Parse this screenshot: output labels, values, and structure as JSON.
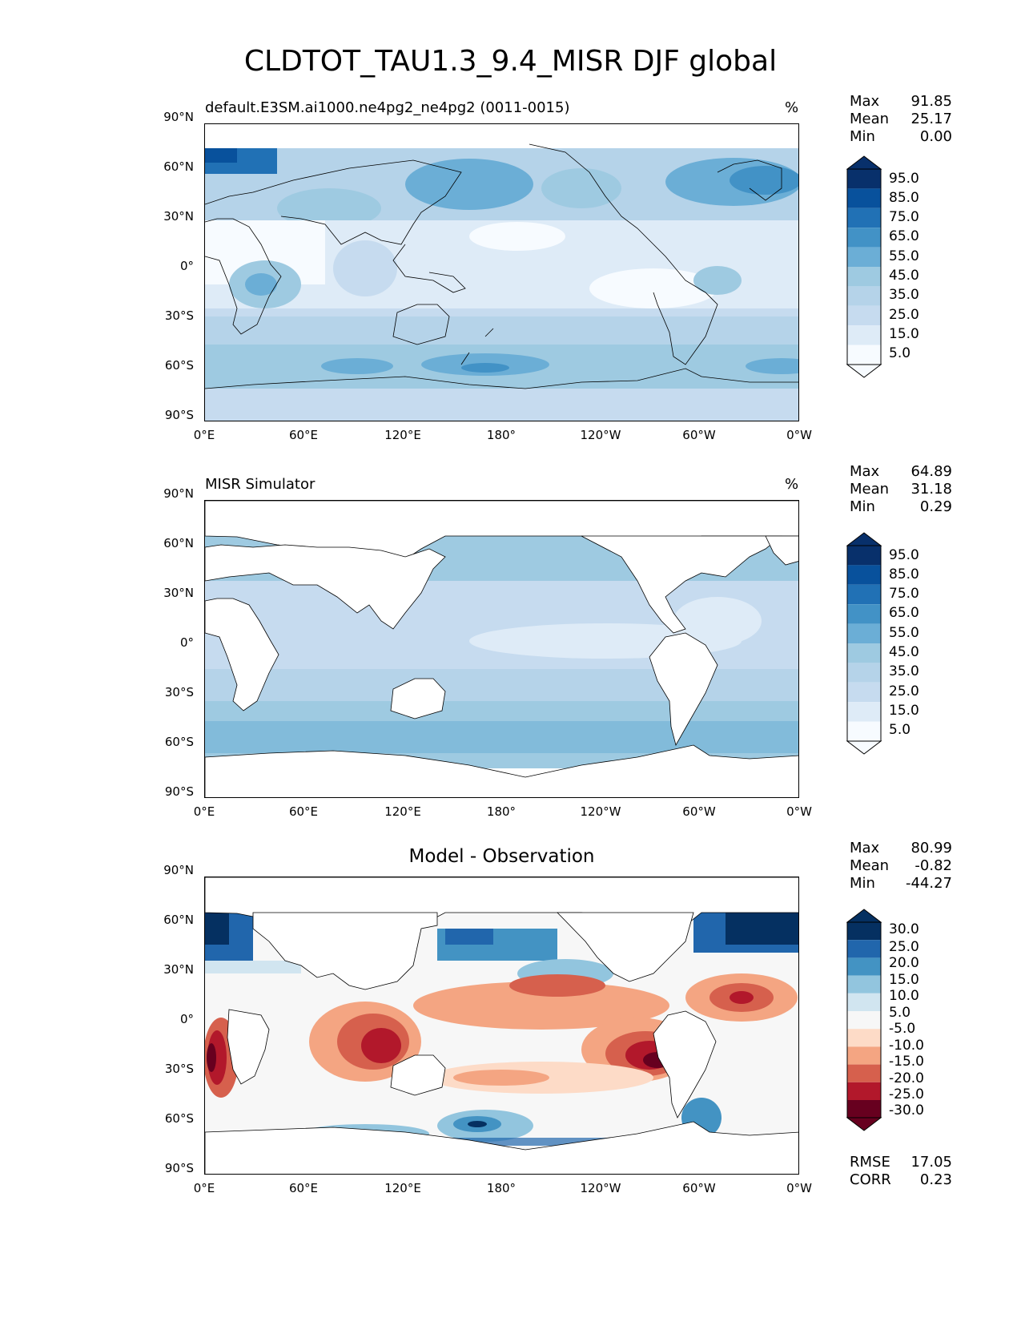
{
  "title": "CLDTOT_TAU1.3_9.4_MISR DJF global",
  "axes": {
    "ylabels": [
      "90°N",
      "60°N",
      "30°N",
      "0°",
      "30°S",
      "60°S",
      "90°S"
    ],
    "xlabels": [
      "0°E",
      "60°E",
      "120°E",
      "180°",
      "120°W",
      "60°W",
      "0°W"
    ]
  },
  "colors": {
    "seq": [
      "#f7fbff",
      "#deebf7",
      "#c6dbef",
      "#b5d3e9",
      "#9ecae1",
      "#6baed6",
      "#4292c6",
      "#2171b5",
      "#08519c",
      "#08306b"
    ],
    "div": [
      "#67001f",
      "#b2182b",
      "#d6604d",
      "#f4a582",
      "#fddbc7",
      "#f7f7f7",
      "#d1e5f0",
      "#92c5de",
      "#4393c3",
      "#2166ac",
      "#053061"
    ]
  },
  "panels": [
    {
      "id": "model",
      "title": "default.E3SM.ai1000.ne4pg2_ne4pg2 (0011-0015)",
      "units": "%",
      "stats": {
        "max_label": "Max",
        "max": "91.85",
        "mean_label": "Mean",
        "mean": "25.17",
        "min_label": "Min",
        "min": "0.00"
      },
      "colorbar_labels": [
        "95.0",
        "85.0",
        "75.0",
        "65.0",
        "55.0",
        "45.0",
        "35.0",
        "25.0",
        "15.0",
        "5.0"
      ]
    },
    {
      "id": "obs",
      "title": "MISR Simulator",
      "units": "%",
      "stats": {
        "max_label": "Max",
        "max": "64.89",
        "mean_label": "Mean",
        "mean": "31.18",
        "min_label": "Min",
        "min": "0.29"
      },
      "colorbar_labels": [
        "95.0",
        "85.0",
        "75.0",
        "65.0",
        "55.0",
        "45.0",
        "35.0",
        "25.0",
        "15.0",
        "5.0"
      ]
    },
    {
      "id": "diff",
      "title": "Model - Observation",
      "units": "",
      "stats": {
        "max_label": "Max",
        "max": "80.99",
        "mean_label": "Mean",
        "mean": "-0.82",
        "min_label": "Min",
        "min": "-44.27"
      },
      "colorbar_labels": [
        "30.0",
        "25.0",
        "20.0",
        "15.0",
        "10.0",
        "5.0",
        "-5.0",
        "-10.0",
        "-15.0",
        "-20.0",
        "-25.0",
        "-30.0"
      ],
      "metrics": {
        "rmse_label": "RMSE",
        "rmse": "17.05",
        "corr_label": "CORR",
        "corr": "0.23"
      }
    }
  ]
}
